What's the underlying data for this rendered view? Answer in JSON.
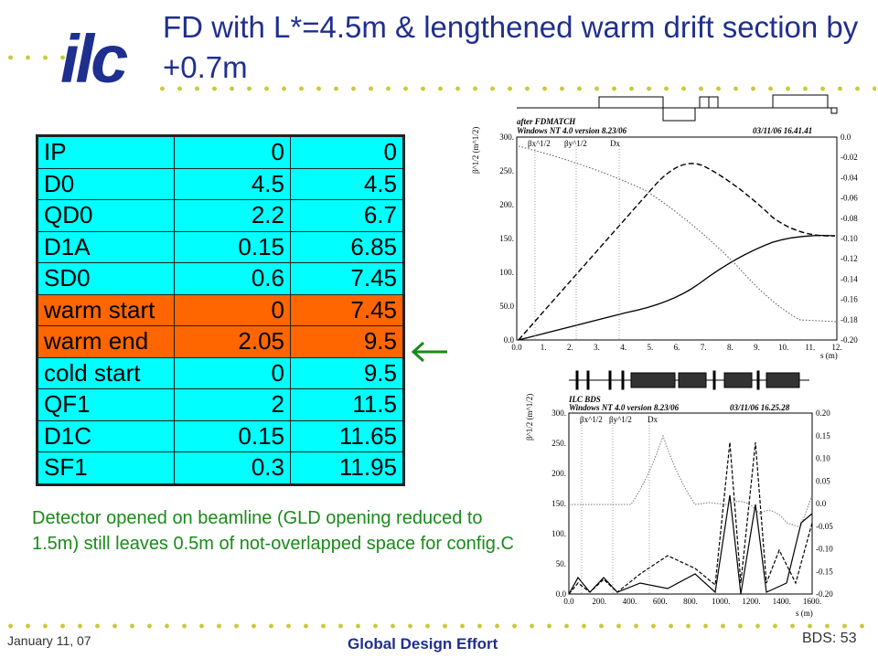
{
  "title": "FD with L*=4.5m & lengthened warm drift section by +0.7m",
  "logo_text": "ilc",
  "colors": {
    "cyan": "#00ffff",
    "orange": "#ff6600",
    "title_blue": "#1f2f8f",
    "note_green": "#1a8a1a",
    "dots": "#c9c93a"
  },
  "table": {
    "rows": [
      {
        "name": "IP",
        "length": "0",
        "position": "0",
        "color": "cyan"
      },
      {
        "name": "D0",
        "length": "4.5",
        "position": "4.5",
        "color": "cyan"
      },
      {
        "name": "QD0",
        "length": "2.2",
        "position": "6.7",
        "color": "cyan"
      },
      {
        "name": "D1A",
        "length": "0.15",
        "position": "6.85",
        "color": "cyan"
      },
      {
        "name": "SD0",
        "length": "0.6",
        "position": "7.45",
        "color": "cyan"
      },
      {
        "name": "warm start",
        "length": "0",
        "position": "7.45",
        "color": "orange"
      },
      {
        "name": "warm end",
        "length": "2.05",
        "position": "9.5",
        "color": "orange"
      },
      {
        "name": "cold start",
        "length": "0",
        "position": "9.5",
        "color": "cyan"
      },
      {
        "name": "QF1",
        "length": "2",
        "position": "11.5",
        "color": "cyan"
      },
      {
        "name": "D1C",
        "length": "0.15",
        "position": "11.65",
        "color": "cyan"
      },
      {
        "name": "SF1",
        "length": "0.3",
        "position": "11.95",
        "color": "cyan"
      }
    ]
  },
  "arrow_icon": "left-arrow-icon",
  "note": "Detector opened on beamline (GLD opening reduced to 1.5m) still leaves 0.5m of not-overlapped space for config.C",
  "plot_top": {
    "header_left": "after FDMATCH",
    "header_sub": "Windows NT 4.0 version 8.23/06",
    "header_right": "03/11/06  16.41.41",
    "ylabel": "β^1/2 (m^1/2)",
    "xlabel": "s (m)",
    "legend": [
      "βx^1/2",
      "βy^1/2",
      "Dx"
    ],
    "y_ticks": [
      "300.",
      "250.",
      "200.",
      "150.",
      "100.",
      "50.0",
      "0.0"
    ],
    "y2_ticks": [
      "0.0",
      "-0.02",
      "-0.04",
      "-0.06",
      "-0.08",
      "-0.10",
      "-0.12",
      "-0.14",
      "-0.16",
      "-0.18",
      "-0.20"
    ],
    "x_ticks": [
      "0.0",
      "1.",
      "2.",
      "3.",
      "4.",
      "5.",
      "6.",
      "7.",
      "8.",
      "9.",
      "10.",
      "11.",
      "12."
    ]
  },
  "plot_bottom": {
    "header_left": "ILC BDS",
    "header_sub": "Windows NT 4.0 version 8.23/06",
    "header_right": "03/11/06  16.25.28",
    "ylabel": "β^1/2 (m^1/2)",
    "xlabel": "s (m)",
    "legend": [
      "βx^1/2",
      "βy^1/2",
      "Dx"
    ],
    "y_ticks": [
      "300.",
      "250.",
      "200.",
      "150.",
      "100.",
      "50.",
      "0.0"
    ],
    "y2_ticks": [
      "0.20",
      "0.15",
      "0.10",
      "0.05",
      "0.0",
      "-0.05",
      "-0.10",
      "-0.15",
      "-0.20"
    ],
    "x_ticks": [
      "0.0",
      "200.",
      "400.",
      "600.",
      "800.",
      "1000.",
      "1200.",
      "1400.",
      "1600."
    ]
  },
  "footer": {
    "date": "January 11, 07",
    "center": "Global Design Effort",
    "page": "BDS: 53"
  }
}
